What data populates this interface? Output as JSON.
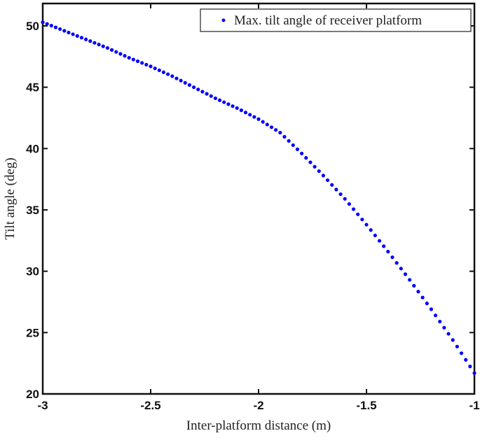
{
  "chart_data": {
    "type": "scatter",
    "title": "",
    "xlabel": "Inter-platform distance (m)",
    "ylabel": "Tilt angle (deg)",
    "xlim": [
      -3,
      -1
    ],
    "ylim": [
      20,
      52
    ],
    "xticks": [
      -3,
      -2.5,
      -2,
      -1.5,
      -1
    ],
    "xtick_labels": [
      "-3",
      "-2.5",
      "-2",
      "-1.5",
      "-1"
    ],
    "yticks": [
      20,
      25,
      30,
      35,
      40,
      45,
      50
    ],
    "ytick_labels": [
      "20",
      "25",
      "30",
      "35",
      "40",
      "45",
      "50"
    ],
    "grid": false,
    "legend": {
      "position": "upper right",
      "entries": [
        "Max. tilt angle of receiver platform"
      ]
    },
    "series": [
      {
        "name": "Max. tilt angle of receiver platform",
        "color": "#0000ff",
        "marker": "dot",
        "x": [
          -3.0,
          -2.9,
          -2.8,
          -2.7,
          -2.6,
          -2.5,
          -2.4,
          -2.3,
          -2.2,
          -2.1,
          -2.0,
          -1.9,
          -1.8,
          -1.7,
          -1.6,
          -1.5,
          -1.4,
          -1.3,
          -1.2,
          -1.1,
          -1.0
        ],
        "y": [
          50.3,
          49.6,
          48.9,
          48.2,
          47.4,
          46.7,
          45.9,
          45.0,
          44.1,
          43.3,
          42.4,
          41.3,
          39.6,
          37.8,
          35.9,
          33.8,
          31.6,
          29.3,
          26.9,
          24.4,
          21.7
        ]
      }
    ]
  }
}
